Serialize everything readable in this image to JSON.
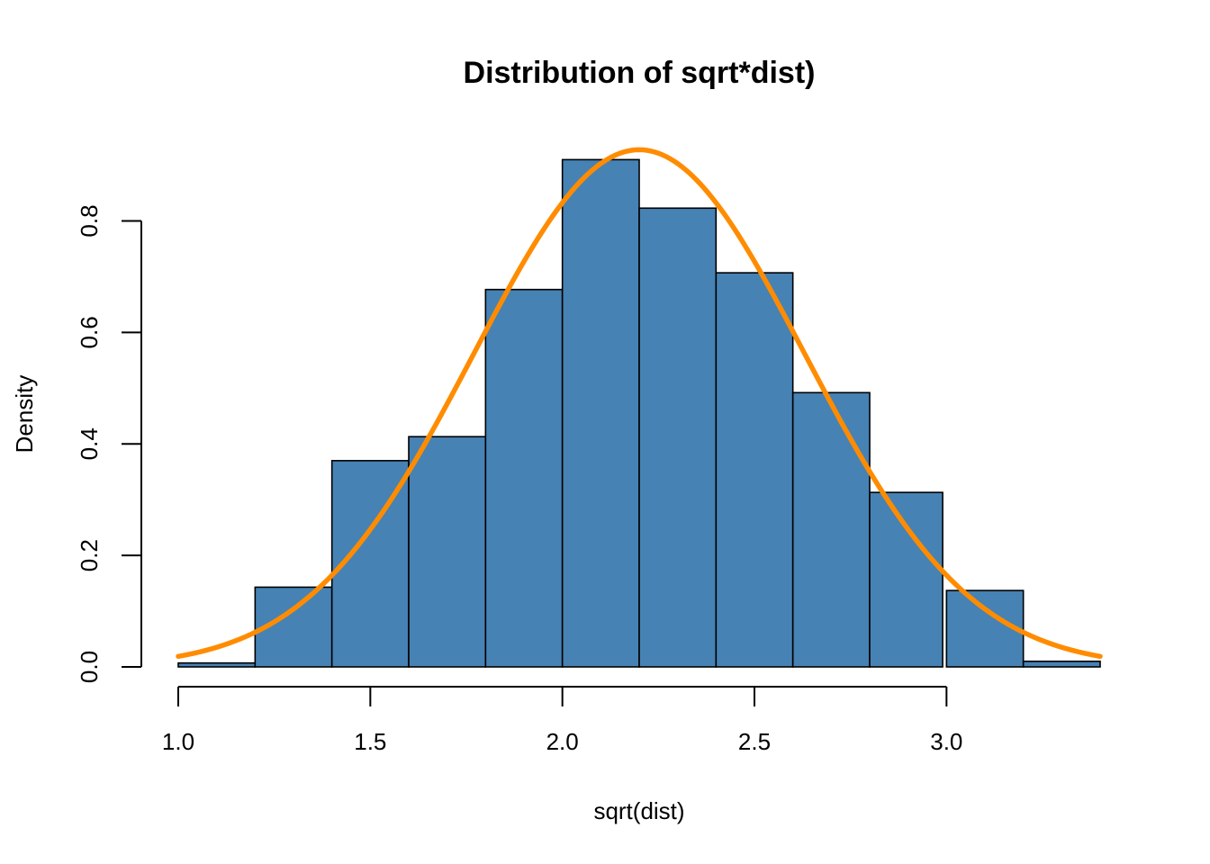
{
  "chart_data": {
    "type": "bar",
    "title": "Distribution of sqrt*dist)",
    "xlabel": "sqrt(dist)",
    "ylabel": "Density",
    "xlim": [
      1.0,
      3.4
    ],
    "ylim": [
      0.0,
      0.93
    ],
    "x_ticks": [
      "1.0",
      "1.5",
      "2.0",
      "2.5",
      "3.0"
    ],
    "y_ticks": [
      "0.0",
      "0.2",
      "0.4",
      "0.6",
      "0.8"
    ],
    "bins": [
      {
        "start": 1.0,
        "end": 1.2,
        "value": 0.007
      },
      {
        "start": 1.2,
        "end": 1.4,
        "value": 0.143
      },
      {
        "start": 1.4,
        "end": 1.6,
        "value": 0.37
      },
      {
        "start": 1.6,
        "end": 1.8,
        "value": 0.413
      },
      {
        "start": 1.8,
        "end": 2.0,
        "value": 0.677
      },
      {
        "start": 2.0,
        "end": 2.2,
        "value": 0.91
      },
      {
        "start": 2.2,
        "end": 2.4,
        "value": 0.823
      },
      {
        "start": 2.4,
        "end": 2.6,
        "value": 0.707
      },
      {
        "start": 2.6,
        "end": 2.8,
        "value": 0.492
      },
      {
        "start": 2.8,
        "end": 2.99,
        "value": 0.313
      },
      {
        "start": 3.0,
        "end": 3.2,
        "value": 0.137
      },
      {
        "start": 3.2,
        "end": 3.4,
        "value": 0.01
      }
    ],
    "curve": {
      "type": "normal-density",
      "mean": 2.2,
      "sd": 0.43
    },
    "grid": false,
    "colors": {
      "bar_fill": "#4682B4",
      "bar_border": "#000000",
      "curve": "#FF8C00"
    }
  }
}
